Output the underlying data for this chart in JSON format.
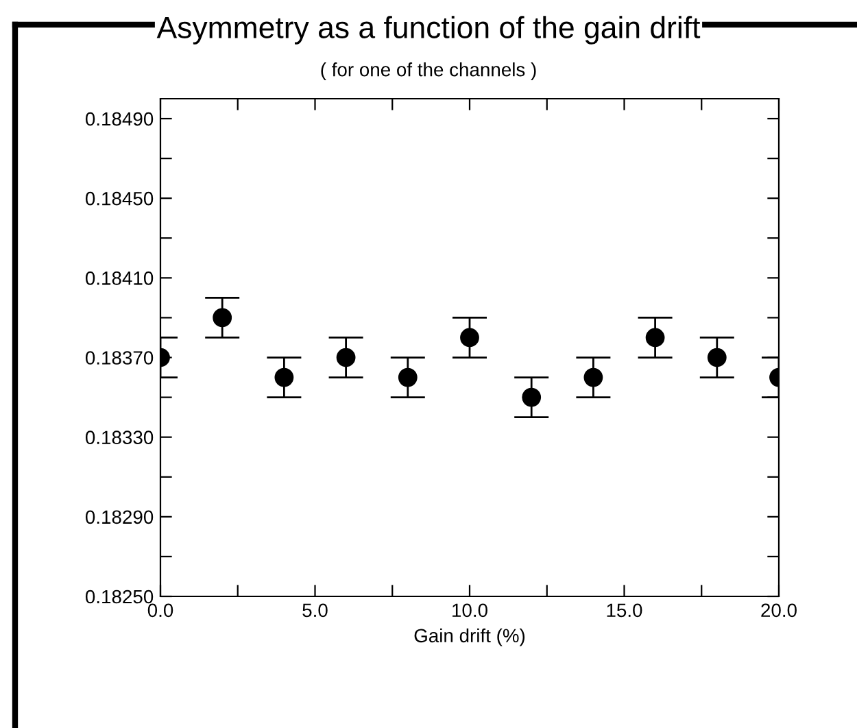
{
  "chart_data": {
    "type": "scatter",
    "title": "Asymmetry as a function of the gain drift",
    "subtitle": "( for one of the channels )",
    "xlabel": "Gain drift (%)",
    "x": [
      0,
      2,
      4,
      6,
      8,
      10,
      12,
      14,
      16,
      18,
      20
    ],
    "values": [
      0.1837,
      0.1839,
      0.1836,
      0.1837,
      0.1836,
      0.1838,
      0.1835,
      0.1836,
      0.1838,
      0.1837,
      0.1836
    ],
    "errors": [
      0.0001,
      0.0001,
      0.0001,
      0.0001,
      0.0001,
      0.0001,
      0.0001,
      0.0001,
      0.0001,
      0.0001,
      0.0001
    ],
    "color": "#000000",
    "marker": "circle",
    "xlim": [
      0,
      20
    ],
    "xticks": [
      {
        "value": 0,
        "label": "0.0"
      },
      {
        "value": 2.5,
        "label": null
      },
      {
        "value": 5,
        "label": "5.0"
      },
      {
        "value": 7.5,
        "label": null
      },
      {
        "value": 10,
        "label": "10.0"
      },
      {
        "value": 12.5,
        "label": null
      },
      {
        "value": 15,
        "label": "15.0"
      },
      {
        "value": 17.5,
        "label": null
      },
      {
        "value": 20,
        "label": "20.0"
      }
    ],
    "ylim": [
      0.1825,
      0.185
    ],
    "yticks": [
      {
        "value": 0.1825,
        "label": "0.18250"
      },
      {
        "value": 0.1827,
        "label": null
      },
      {
        "value": 0.1829,
        "label": "0.18290"
      },
      {
        "value": 0.1831,
        "label": null
      },
      {
        "value": 0.1833,
        "label": "0.18330"
      },
      {
        "value": 0.1835,
        "label": null
      },
      {
        "value": 0.1837,
        "label": "0.18370"
      },
      {
        "value": 0.1839,
        "label": null
      },
      {
        "value": 0.1841,
        "label": "0.18410"
      },
      {
        "value": 0.1843,
        "label": null
      },
      {
        "value": 0.1845,
        "label": "0.18450"
      },
      {
        "value": 0.1847,
        "label": null
      },
      {
        "value": 0.1849,
        "label": "0.18490"
      }
    ],
    "grid": false,
    "legend": false
  }
}
